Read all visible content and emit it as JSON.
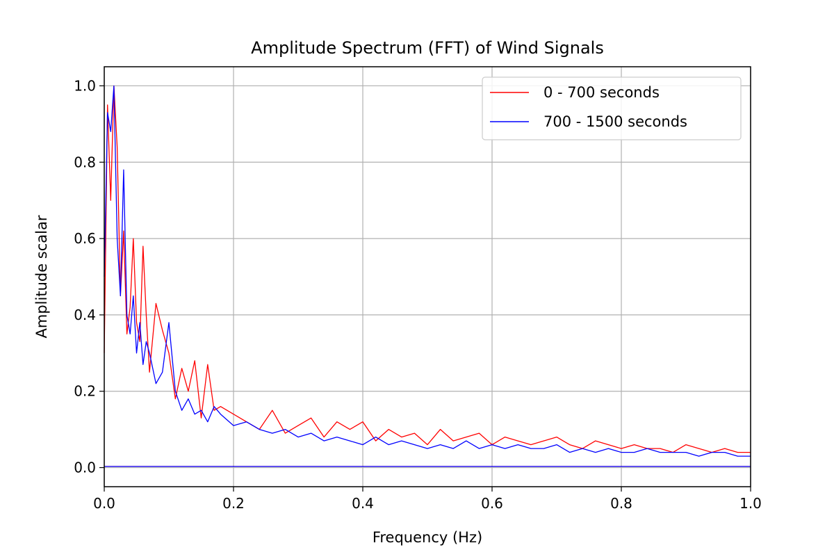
{
  "chart_data": {
    "type": "line",
    "title": "Amplitude Spectrum (FFT) of Wind Signals",
    "xlabel": "Frequency (Hz)",
    "ylabel": "Amplitude scalar",
    "xlim": [
      0.0,
      1.0
    ],
    "ylim": [
      -0.05,
      1.05
    ],
    "x_ticks": [
      0.0,
      0.2,
      0.4,
      0.6,
      0.8,
      1.0
    ],
    "x_tick_labels": [
      "0.0",
      "0.2",
      "0.4",
      "0.6",
      "0.8",
      "1.0"
    ],
    "y_ticks": [
      0.0,
      0.2,
      0.4,
      0.6,
      0.8,
      1.0
    ],
    "y_tick_labels": [
      "0.0",
      "0.2",
      "0.4",
      "0.6",
      "0.8",
      "1.0"
    ],
    "grid": true,
    "legend_position": "top-right",
    "series": [
      {
        "name": "0 - 700 seconds",
        "color": "#ff0000",
        "x": [
          0.0,
          0.005,
          0.01,
          0.015,
          0.02,
          0.025,
          0.03,
          0.035,
          0.04,
          0.045,
          0.05,
          0.055,
          0.06,
          0.065,
          0.07,
          0.08,
          0.09,
          0.1,
          0.11,
          0.12,
          0.13,
          0.14,
          0.15,
          0.16,
          0.17,
          0.18,
          0.2,
          0.22,
          0.24,
          0.26,
          0.28,
          0.3,
          0.32,
          0.34,
          0.36,
          0.38,
          0.4,
          0.42,
          0.44,
          0.46,
          0.48,
          0.5,
          0.52,
          0.54,
          0.56,
          0.58,
          0.6,
          0.62,
          0.64,
          0.66,
          0.68,
          0.7,
          0.72,
          0.74,
          0.76,
          0.78,
          0.8,
          0.82,
          0.84,
          0.86,
          0.88,
          0.9,
          0.92,
          0.94,
          0.96,
          0.98,
          1.0
        ],
        "y": [
          0.3,
          0.95,
          0.7,
          1.0,
          0.84,
          0.45,
          0.62,
          0.35,
          0.42,
          0.6,
          0.38,
          0.33,
          0.58,
          0.4,
          0.25,
          0.43,
          0.36,
          0.3,
          0.18,
          0.26,
          0.2,
          0.28,
          0.13,
          0.27,
          0.15,
          0.16,
          0.14,
          0.12,
          0.1,
          0.15,
          0.09,
          0.11,
          0.13,
          0.08,
          0.12,
          0.1,
          0.12,
          0.07,
          0.1,
          0.08,
          0.09,
          0.06,
          0.1,
          0.07,
          0.08,
          0.09,
          0.06,
          0.08,
          0.07,
          0.06,
          0.07,
          0.08,
          0.06,
          0.05,
          0.07,
          0.06,
          0.05,
          0.06,
          0.05,
          0.05,
          0.04,
          0.06,
          0.05,
          0.04,
          0.05,
          0.04,
          0.04
        ]
      },
      {
        "name": "700 - 1500 seconds",
        "color": "#0000ff",
        "x": [
          0.0,
          0.005,
          0.01,
          0.015,
          0.02,
          0.025,
          0.03,
          0.035,
          0.04,
          0.045,
          0.05,
          0.055,
          0.06,
          0.065,
          0.07,
          0.08,
          0.09,
          0.1,
          0.11,
          0.12,
          0.13,
          0.14,
          0.15,
          0.16,
          0.17,
          0.18,
          0.2,
          0.22,
          0.24,
          0.26,
          0.28,
          0.3,
          0.32,
          0.34,
          0.36,
          0.38,
          0.4,
          0.42,
          0.44,
          0.46,
          0.48,
          0.5,
          0.52,
          0.54,
          0.56,
          0.58,
          0.6,
          0.62,
          0.64,
          0.66,
          0.68,
          0.7,
          0.72,
          0.74,
          0.76,
          0.78,
          0.8,
          0.82,
          0.84,
          0.86,
          0.88,
          0.9,
          0.92,
          0.94,
          0.96,
          0.98,
          1.0
        ],
        "y": [
          0.5,
          0.93,
          0.88,
          1.0,
          0.6,
          0.45,
          0.78,
          0.4,
          0.35,
          0.45,
          0.3,
          0.38,
          0.27,
          0.33,
          0.3,
          0.22,
          0.25,
          0.38,
          0.2,
          0.15,
          0.18,
          0.14,
          0.15,
          0.12,
          0.16,
          0.14,
          0.11,
          0.12,
          0.1,
          0.09,
          0.1,
          0.08,
          0.09,
          0.07,
          0.08,
          0.07,
          0.06,
          0.08,
          0.06,
          0.07,
          0.06,
          0.05,
          0.06,
          0.05,
          0.07,
          0.05,
          0.06,
          0.05,
          0.06,
          0.05,
          0.05,
          0.06,
          0.04,
          0.05,
          0.04,
          0.05,
          0.04,
          0.04,
          0.05,
          0.04,
          0.04,
          0.04,
          0.03,
          0.04,
          0.04,
          0.03,
          0.03
        ]
      }
    ],
    "baseline_y": 0.003
  }
}
